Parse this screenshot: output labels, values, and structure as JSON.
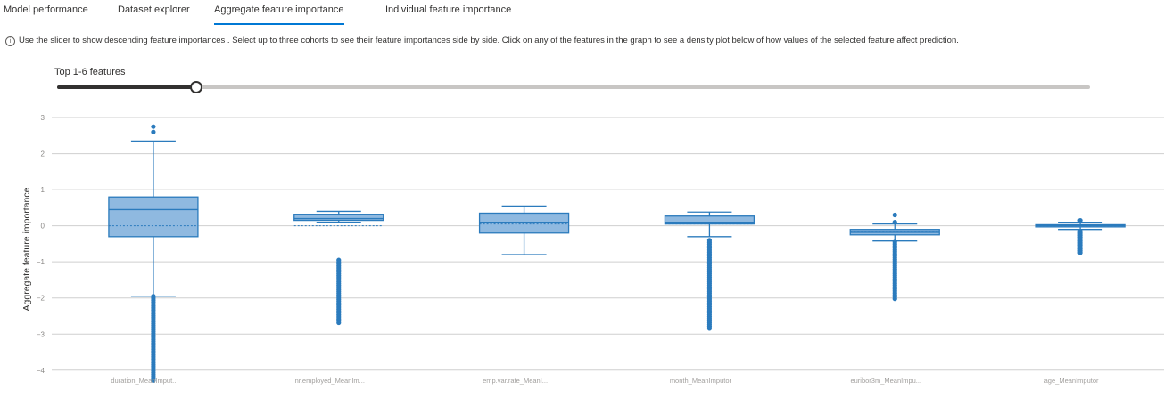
{
  "tabs": [
    {
      "label": "Model performance",
      "active": false
    },
    {
      "label": "Dataset explorer",
      "active": false
    },
    {
      "label": "Aggregate feature importance",
      "active": true
    },
    {
      "label": "Individual feature importance",
      "active": false
    }
  ],
  "info_text": "Use the slider to show descending feature importances . Select up to three cohorts to see their feature importances side by side. Click on any of the features in the graph to see a density plot below of how values of the selected feature affect prediction.",
  "slider": {
    "label": "Top 1-6 features",
    "value_fraction": 0.135
  },
  "colors": {
    "box_fill": "#8fb9e0",
    "box_stroke": "#2b7bbd",
    "accent": "#0078d4",
    "grid": "#cfcfcf"
  },
  "chart_data": {
    "type": "box",
    "ylabel": "Aggregate feature importance",
    "ylim": [
      -4.4,
      3.1
    ],
    "yticks": [
      -4,
      -3,
      -2,
      -1,
      0,
      1,
      2,
      3
    ],
    "ytick_labels": [
      "−4",
      "−3",
      "−2",
      "−1",
      "0",
      "1",
      "2",
      "3"
    ],
    "categories": [
      "duration_MeanImput...",
      "nr.employed_MeanIm...",
      "emp.var.rate_MeanI...",
      "month_MeanImputor",
      "euribor3m_MeanImpu...",
      "age_MeanImputor"
    ],
    "boxes": [
      {
        "whisker_low": -1.95,
        "q1": -0.3,
        "median": 0.45,
        "mean": 0.0,
        "q3": 0.8,
        "whisker_high": 2.35,
        "outliers_high": [
          2.6,
          2.75
        ],
        "outliers_low_range": [
          -4.3,
          -1.95
        ]
      },
      {
        "whisker_low": 0.1,
        "q1": 0.15,
        "median": 0.2,
        "mean": 0.0,
        "q3": 0.32,
        "whisker_high": 0.4,
        "outliers_high": [],
        "outliers_low_range": [
          -2.7,
          -0.95
        ]
      },
      {
        "whisker_low": -0.8,
        "q1": -0.2,
        "median": 0.1,
        "mean": 0.05,
        "q3": 0.35,
        "whisker_high": 0.55,
        "outliers_high": [],
        "outliers_low_range": []
      },
      {
        "whisker_low": -0.3,
        "q1": 0.05,
        "median": 0.1,
        "mean": 0.05,
        "q3": 0.27,
        "whisker_high": 0.38,
        "outliers_high": [],
        "outliers_low_range": [
          -2.85,
          -0.4
        ]
      },
      {
        "whisker_low": -0.42,
        "q1": -0.25,
        "median": -0.18,
        "mean": -0.15,
        "q3": -0.1,
        "whisker_high": 0.05,
        "outliers_high": [
          0.1,
          0.3
        ],
        "outliers_low_range": [
          -2.05,
          -0.45
        ]
      },
      {
        "whisker_low": -0.1,
        "q1": -0.03,
        "median": 0.0,
        "mean": 0.0,
        "q3": 0.03,
        "whisker_high": 0.1,
        "outliers_high": [
          0.15
        ],
        "outliers_low_range": [
          -0.8,
          -0.15
        ]
      }
    ]
  }
}
